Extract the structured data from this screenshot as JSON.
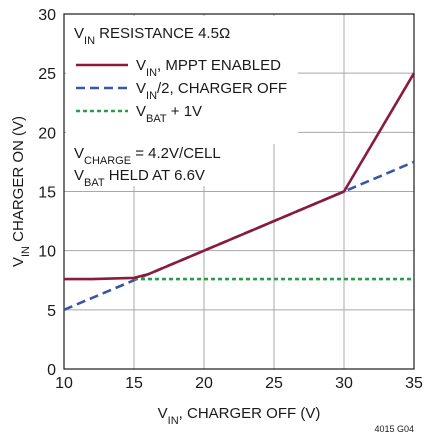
{
  "chart_data": {
    "type": "line",
    "xlabel": {
      "main": "V",
      "sub": "IN",
      "rest": ", CHARGER OFF (V)"
    },
    "ylabel": {
      "main": "V",
      "sub": "IN",
      "rest": " CHARGER ON (V)"
    },
    "xlim": [
      10,
      35
    ],
    "ylim": [
      0,
      30
    ],
    "x_ticks": [
      10,
      15,
      20,
      25,
      30,
      35
    ],
    "y_ticks": [
      0,
      5,
      10,
      15,
      20,
      25,
      30
    ],
    "grid": true,
    "legend_title": {
      "main": "V",
      "sub": "IN",
      "rest": " RESISTANCE 4.5Ω"
    },
    "legend_placement": "top-left",
    "series": [
      {
        "name": {
          "main": "V",
          "sub": "IN",
          "rest": ", MPPT ENABLED"
        },
        "color": "#8b1a3c",
        "style": "solid",
        "points": [
          [
            10,
            7.6
          ],
          [
            12,
            7.6
          ],
          [
            15,
            7.7
          ],
          [
            16,
            8.0
          ],
          [
            20,
            10.0
          ],
          [
            25,
            12.5
          ],
          [
            30,
            15.0
          ],
          [
            35,
            25.0
          ]
        ]
      },
      {
        "name": {
          "main": "V",
          "sub": "IN",
          "rest": "/2, CHARGER OFF"
        },
        "color": "#3a56a5",
        "style": "dashed",
        "points": [
          [
            10,
            5.0
          ],
          [
            35,
            17.5
          ]
        ]
      },
      {
        "name": {
          "main": "V",
          "sub": "BAT",
          "rest": " + 1V"
        },
        "color": "#2e9a4e",
        "style": "dotted",
        "points": [
          [
            15,
            7.6
          ],
          [
            35,
            7.6
          ]
        ]
      }
    ],
    "annotations": [
      {
        "main": "V",
        "sub": "CHARGE",
        "rest": " = 4.2V/CELL"
      },
      {
        "main": "V",
        "sub": "BAT",
        "rest": " HELD AT 6.6V"
      }
    ],
    "figure_code": "4015 G04"
  }
}
